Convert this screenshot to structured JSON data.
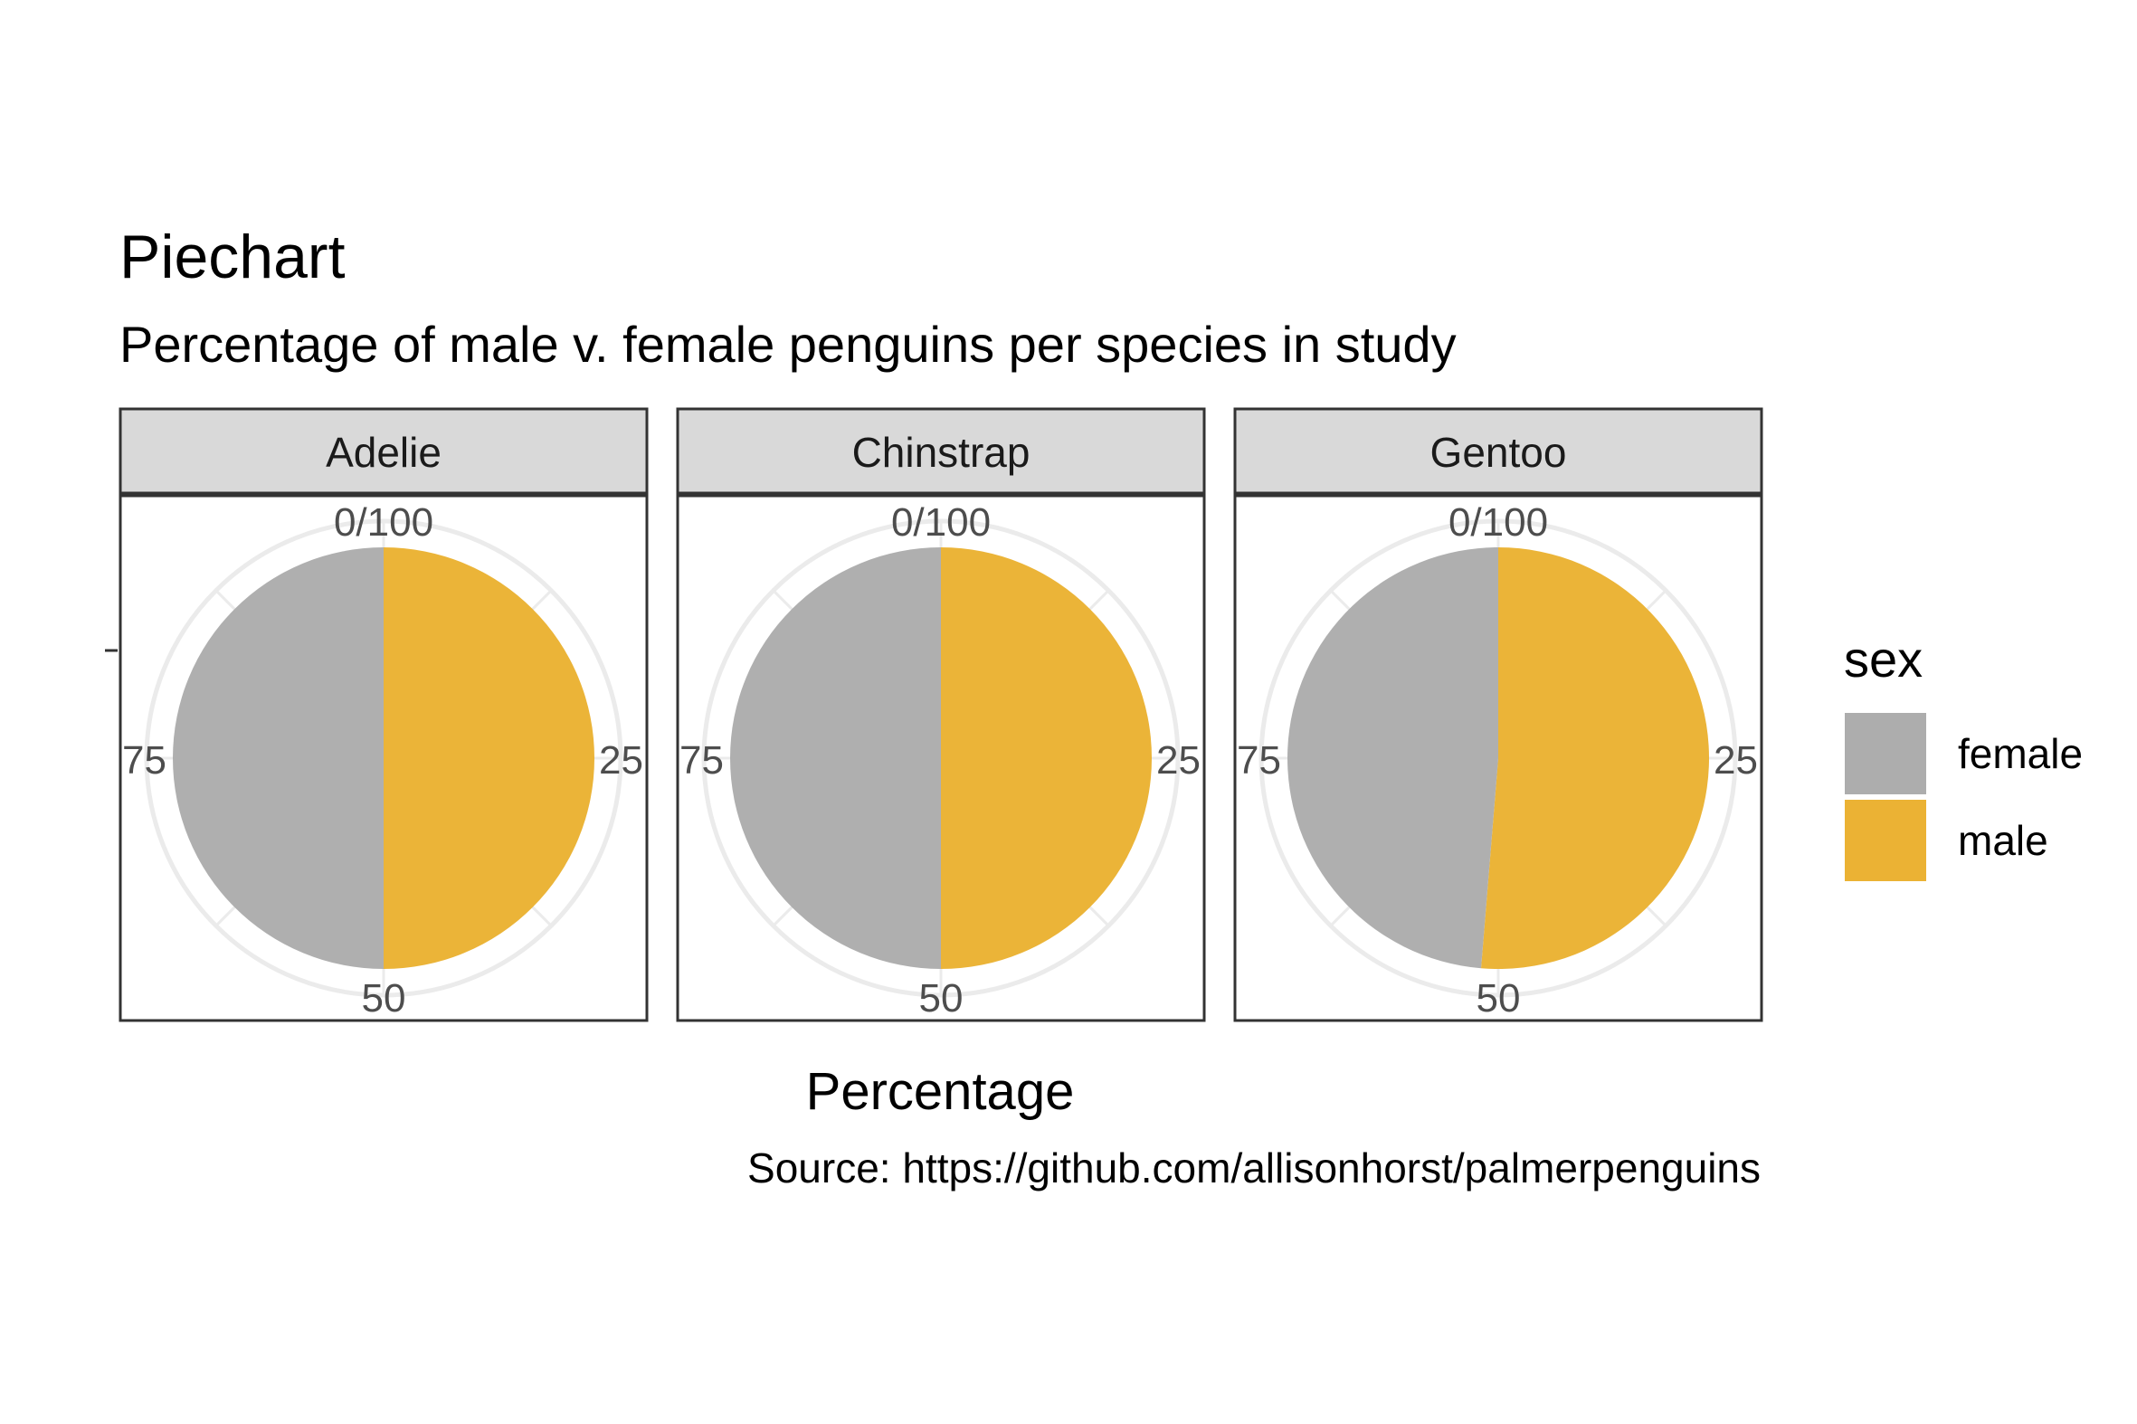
{
  "chart_data": {
    "type": "pie",
    "title": "Piechart",
    "subtitle": "Percentage of male v. female penguins per species in study",
    "xlabel": "Percentage",
    "ylabel": "",
    "caption": "Source: https://github.com/allisonhorst/palmerpenguins",
    "angular_ticks": [
      "0/100",
      "25",
      "50",
      "75"
    ],
    "legend": {
      "title": "sex",
      "placement": "right",
      "entries": [
        {
          "name": "female",
          "color": "#ADADAD"
        },
        {
          "name": "male",
          "color": "#EBB234"
        }
      ]
    },
    "categories": [
      "female",
      "male"
    ],
    "facets": [
      {
        "name": "Adelie",
        "values": [
          50.0,
          50.0
        ]
      },
      {
        "name": "Chinstrap",
        "values": [
          50.0,
          50.0
        ]
      },
      {
        "name": "Gentoo",
        "values": [
          48.7,
          51.3
        ]
      }
    ],
    "colors": {
      "female": "#ADADAD",
      "male": "#EBB234",
      "strip_fill": "#D9D9D9",
      "panel_border": "#333333",
      "grid": "#EBEBEB"
    }
  }
}
